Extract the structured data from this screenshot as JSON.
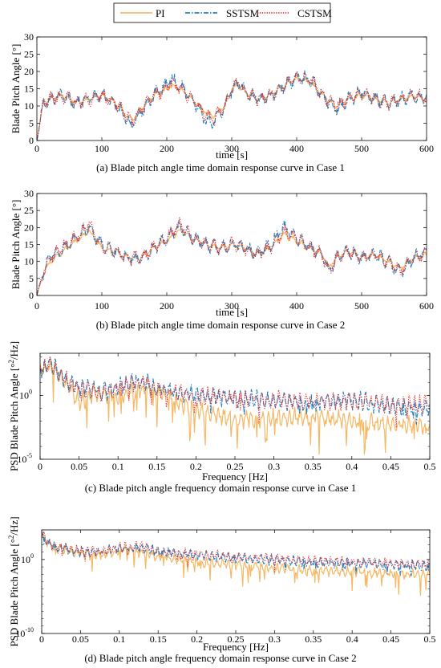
{
  "legend": {
    "entries": [
      {
        "label": "PI",
        "color": "#F5B865",
        "style": "solid"
      },
      {
        "label": "SSTSM",
        "color": "#1F7EC2",
        "style": "dashdot"
      },
      {
        "label": "CSTSM",
        "color": "#E8302A",
        "style": "dotted"
      }
    ],
    "placement": "top-center"
  },
  "chart_data": [
    {
      "type": "line",
      "caption": "(a) Blade pitch angle time domain response curve in Case 1",
      "xlabel": "time [s]",
      "ylabel": "Blade Pitch Angle [°]",
      "xlim": [
        0,
        600
      ],
      "ylim": [
        0,
        30
      ],
      "yscale": "linear",
      "xticks": [
        "0",
        "100",
        "200",
        "300",
        "400",
        "500",
        "600"
      ],
      "yticks": [
        "0",
        "5",
        "10",
        "15",
        "20",
        "25",
        "30"
      ],
      "grid": false,
      "anchors_x": [
        0,
        10,
        20,
        40,
        60,
        80,
        100,
        120,
        140,
        145,
        160,
        180,
        200,
        205,
        220,
        240,
        260,
        270,
        290,
        300,
        310,
        320,
        340,
        360,
        380,
        400,
        420,
        440,
        460,
        480,
        500,
        520,
        540,
        560,
        580,
        600
      ],
      "series": [
        {
          "name": "PI",
          "values": [
            0,
            11,
            12,
            13,
            11,
            12,
            13,
            11,
            7,
            6,
            9,
            13,
            15,
            16,
            15,
            12,
            8,
            7,
            10,
            15,
            16,
            14,
            12,
            13,
            16,
            18,
            17,
            13,
            10,
            12,
            13,
            12,
            11,
            12,
            13,
            12
          ]
        },
        {
          "name": "SSTSM",
          "values": [
            0,
            11,
            12,
            13,
            11,
            12,
            13,
            11,
            6,
            4,
            8,
            13,
            16,
            18,
            16,
            12,
            6,
            5,
            10,
            15,
            17,
            14,
            12,
            13,
            16,
            18,
            18,
            13,
            9,
            12,
            14,
            12,
            11,
            12,
            13,
            12
          ]
        },
        {
          "name": "CSTSM",
          "values": [
            0,
            11,
            12,
            13,
            11,
            12,
            13,
            11,
            7,
            5,
            9,
            13,
            15,
            17,
            15,
            12,
            7,
            6,
            10,
            15,
            17,
            14,
            12,
            13,
            16,
            18,
            18,
            13,
            10,
            12,
            14,
            12,
            11,
            12,
            13,
            12
          ]
        }
      ]
    },
    {
      "type": "line",
      "caption": "(b) Blade pitch angle time domain response curve in Case 2",
      "xlabel": "time [s]",
      "ylabel": "Blade Pitch Angle [°]",
      "xlim": [
        0,
        600
      ],
      "ylim": [
        0,
        30
      ],
      "yscale": "linear",
      "xticks": [
        "0",
        "100",
        "200",
        "300",
        "400",
        "500",
        "600"
      ],
      "yticks": [
        "0",
        "5",
        "10",
        "15",
        "20",
        "25",
        "30"
      ],
      "grid": false,
      "anchors_x": [
        0,
        10,
        20,
        40,
        60,
        80,
        100,
        120,
        140,
        160,
        180,
        200,
        220,
        240,
        260,
        280,
        300,
        320,
        340,
        360,
        380,
        400,
        420,
        440,
        450,
        460,
        480,
        500,
        520,
        540,
        560,
        580,
        600
      ],
      "series": [
        {
          "name": "PI",
          "values": [
            0,
            6,
            10,
            13,
            16,
            19,
            14,
            13,
            11,
            11,
            14,
            16,
            19,
            17,
            15,
            14,
            15,
            14,
            12,
            14,
            18,
            16,
            14,
            12,
            8,
            11,
            13,
            11,
            12,
            10,
            8,
            11,
            12
          ]
        },
        {
          "name": "SSTSM",
          "values": [
            0,
            7,
            11,
            14,
            17,
            20,
            15,
            13,
            11,
            11,
            14,
            17,
            20,
            17,
            15,
            14,
            15,
            14,
            12,
            15,
            20,
            17,
            14,
            12,
            7,
            11,
            13,
            11,
            12,
            10,
            7,
            11,
            13
          ]
        },
        {
          "name": "CSTSM",
          "values": [
            0,
            7,
            11,
            14,
            17,
            21,
            14,
            13,
            11,
            11,
            14,
            17,
            21,
            17,
            15,
            14,
            15,
            14,
            12,
            14,
            19,
            17,
            14,
            12,
            7,
            11,
            13,
            11,
            12,
            10,
            7,
            11,
            12
          ]
        }
      ]
    },
    {
      "type": "line",
      "caption": "(c) Blade pitch angle frequency domain response curve in Case 1",
      "xlabel": "Frequency [Hz]",
      "ylabel": "PSD Blade Pitch Angle [°²/Hz]",
      "ylabel_parts": {
        "main": "PSD Blade Pitch Angle [°",
        "sup": "2",
        "tail": "/Hz]"
      },
      "xlim": [
        0,
        0.5
      ],
      "yscale": "log",
      "ylim_exp": [
        -5,
        3.3
      ],
      "xticks": [
        "0",
        "0.05",
        "0.1",
        "0.15",
        "0.2",
        "0.25",
        "0.3",
        "0.35",
        "0.4",
        "0.45",
        "0.5"
      ],
      "yticks": [
        {
          "label": "10",
          "exp": "0",
          "value": 1
        },
        {
          "label": "10",
          "exp": "-5",
          "value": 1e-05
        }
      ],
      "grid": false,
      "anchors_x": [
        0,
        0.005,
        0.01,
        0.02,
        0.03,
        0.05,
        0.08,
        0.1,
        0.13,
        0.15,
        0.17,
        0.2,
        0.25,
        0.3,
        0.35,
        0.4,
        0.45,
        0.5
      ],
      "series": [
        {
          "name": "PI",
          "values_log10": [
            2.2,
            2.0,
            2.4,
            2.0,
            1.2,
            -0.5,
            0.2,
            0.0,
            0.6,
            0.3,
            -0.3,
            -1.2,
            -1.9,
            -1.8,
            -1.7,
            -2.0,
            -2.3,
            -2.4
          ]
        },
        {
          "name": "SSTSM",
          "values_log10": [
            2.2,
            2.0,
            2.6,
            2.1,
            1.3,
            0.6,
            0.3,
            0.7,
            1.2,
            0.6,
            0.3,
            0.1,
            -0.3,
            -0.4,
            -0.6,
            -0.3,
            -0.9,
            -1.0
          ]
        },
        {
          "name": "CSTSM",
          "values_log10": [
            2.2,
            2.0,
            2.4,
            2.0,
            1.3,
            0.6,
            0.2,
            0.6,
            1.1,
            0.5,
            0.2,
            0.0,
            -0.2,
            -0.3,
            -0.5,
            -0.4,
            -0.8,
            -0.6
          ]
        }
      ]
    },
    {
      "type": "line",
      "caption": "(d) Blade pitch angle frequency domain response curve in Case 2",
      "xlabel": "Frequency [Hz]",
      "ylabel": "PSD Blade Pitch Angle [°²/Hz]",
      "ylabel_parts": {
        "main": "PSD Blade Pitch Angle [°",
        "sup": "2",
        "tail": "/Hz]"
      },
      "xlim": [
        0,
        0.5
      ],
      "yscale": "log",
      "ylim_exp": [
        -10,
        4
      ],
      "xticks": [
        "0",
        "0.05",
        "0.1",
        "0.15",
        "0.2",
        "0.25",
        "0.3",
        "0.35",
        "0.4",
        "0.45",
        "0.5"
      ],
      "yticks": [
        {
          "label": "10",
          "exp": "0",
          "value": 1
        },
        {
          "label": "10",
          "exp": "-10",
          "value": 1e-10
        }
      ],
      "grid": false,
      "anchors_x": [
        0,
        0.003,
        0.01,
        0.02,
        0.05,
        0.08,
        0.1,
        0.13,
        0.15,
        0.2,
        0.25,
        0.3,
        0.35,
        0.4,
        0.45,
        0.5
      ],
      "series": [
        {
          "name": "PI",
          "values_log10": [
            3.8,
            3.0,
            2.0,
            1.5,
            0.7,
            0.6,
            1.2,
            1.0,
            0.4,
            -0.3,
            -0.8,
            -1.2,
            -1.5,
            -1.7,
            -1.9,
            -2.0
          ]
        },
        {
          "name": "SSTSM",
          "values_log10": [
            3.6,
            3.0,
            2.1,
            1.6,
            1.0,
            1.1,
            1.5,
            1.6,
            1.0,
            0.6,
            0.2,
            -0.1,
            -0.4,
            -0.5,
            -0.7,
            -0.8
          ]
        },
        {
          "name": "CSTSM",
          "values_log10": [
            3.7,
            3.0,
            2.2,
            1.7,
            1.1,
            1.2,
            1.7,
            1.8,
            1.1,
            0.7,
            0.4,
            0.1,
            -0.2,
            -0.3,
            -0.5,
            -0.7
          ]
        }
      ]
    }
  ]
}
